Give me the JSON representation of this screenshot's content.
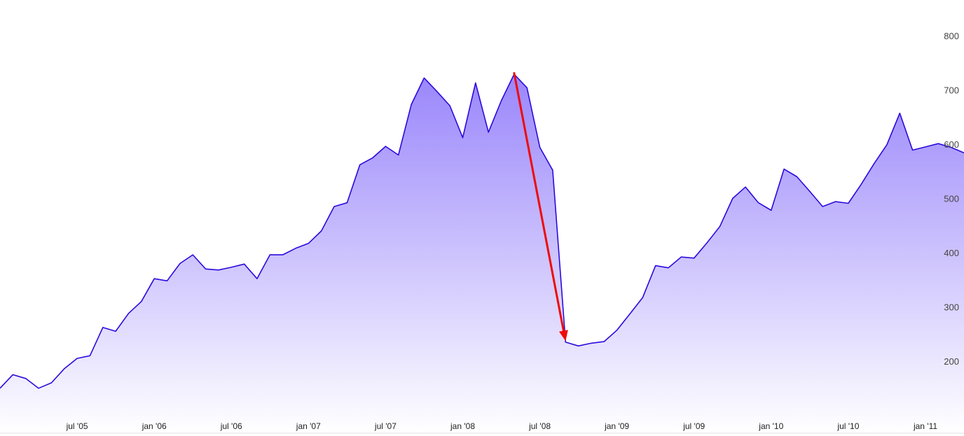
{
  "chart_data": {
    "type": "area",
    "title": "",
    "xlabel": "",
    "ylabel": "",
    "ylim": [
      100,
      820
    ],
    "xlim": [
      "2005-01",
      "2011-04"
    ],
    "y_ticks": [
      "200",
      "300",
      "400",
      "500",
      "600",
      "700",
      "800"
    ],
    "x_ticks": [
      {
        "label": "jul '05",
        "date": "2005-07"
      },
      {
        "label": "jan '06",
        "date": "2006-01"
      },
      {
        "label": "jul '06",
        "date": "2006-07"
      },
      {
        "label": "jan '07",
        "date": "2007-01"
      },
      {
        "label": "jul '07",
        "date": "2007-07"
      },
      {
        "label": "jan '08",
        "date": "2008-01"
      },
      {
        "label": "jul '08",
        "date": "2008-07"
      },
      {
        "label": "jan '09",
        "date": "2009-01"
      },
      {
        "label": "jul '09",
        "date": "2009-07"
      },
      {
        "label": "jan '10",
        "date": "2010-01"
      },
      {
        "label": "jul '10",
        "date": "2010-07"
      },
      {
        "label": "jan '11",
        "date": "2011-01"
      }
    ],
    "y_axis_position": "right",
    "grid": false,
    "legend": "none",
    "series": [
      {
        "x": [
          "2005-01",
          "2005-02",
          "2005-03",
          "2005-04",
          "2005-05",
          "2005-06",
          "2005-07",
          "2005-08",
          "2005-09",
          "2005-10",
          "2005-11",
          "2005-12",
          "2006-01",
          "2006-02",
          "2006-03",
          "2006-04",
          "2006-05",
          "2006-06",
          "2006-07",
          "2006-08",
          "2006-09",
          "2006-10",
          "2006-11",
          "2006-12",
          "2007-01",
          "2007-02",
          "2007-03",
          "2007-04",
          "2007-05",
          "2007-06",
          "2007-07",
          "2007-08",
          "2007-09",
          "2007-10",
          "2007-11",
          "2007-12",
          "2008-01",
          "2008-02",
          "2008-03",
          "2008-04",
          "2008-05",
          "2008-06",
          "2008-07",
          "2008-08",
          "2008-09",
          "2008-10",
          "2008-11",
          "2008-12",
          "2009-01",
          "2009-02",
          "2009-03",
          "2009-04",
          "2009-05",
          "2009-06",
          "2009-07",
          "2009-08",
          "2009-09",
          "2009-10",
          "2009-11",
          "2009-12",
          "2010-01",
          "2010-02",
          "2010-03",
          "2010-04",
          "2010-05",
          "2010-06",
          "2010-07",
          "2010-08",
          "2010-09",
          "2010-10",
          "2010-11",
          "2010-12",
          "2011-01",
          "2011-02",
          "2011-03",
          "2011-04"
        ],
        "values": [
          150,
          175,
          168,
          150,
          160,
          186,
          205,
          210,
          262,
          255,
          288,
          310,
          352,
          348,
          380,
          396,
          370,
          368,
          373,
          379,
          352,
          396,
          396,
          408,
          417,
          440,
          485,
          492,
          562,
          575,
          596,
          580,
          673,
          722,
          697,
          671,
          612,
          713,
          622,
          680,
          729,
          704,
          594,
          552,
          235,
          228,
          233,
          236,
          257,
          287,
          317,
          376,
          372,
          392,
          390,
          418,
          448,
          500,
          521,
          492,
          478,
          554,
          540,
          513,
          485,
          494,
          491,
          526,
          564,
          599,
          657,
          589,
          595,
          601,
          594,
          584
        ]
      }
    ],
    "colors": {
      "line": "#2b0bdd",
      "fill_top": "#9a86fb",
      "fill_bottom": "#ffffff",
      "arrow": "#ee0b0b",
      "tick_text": "#444444",
      "baseline": "#e2e2e2"
    },
    "annotations": [
      {
        "type": "arrow",
        "from": {
          "date": "2008-05",
          "value": 731
        },
        "to": {
          "date": "2008-09",
          "value": 237
        }
      }
    ]
  }
}
